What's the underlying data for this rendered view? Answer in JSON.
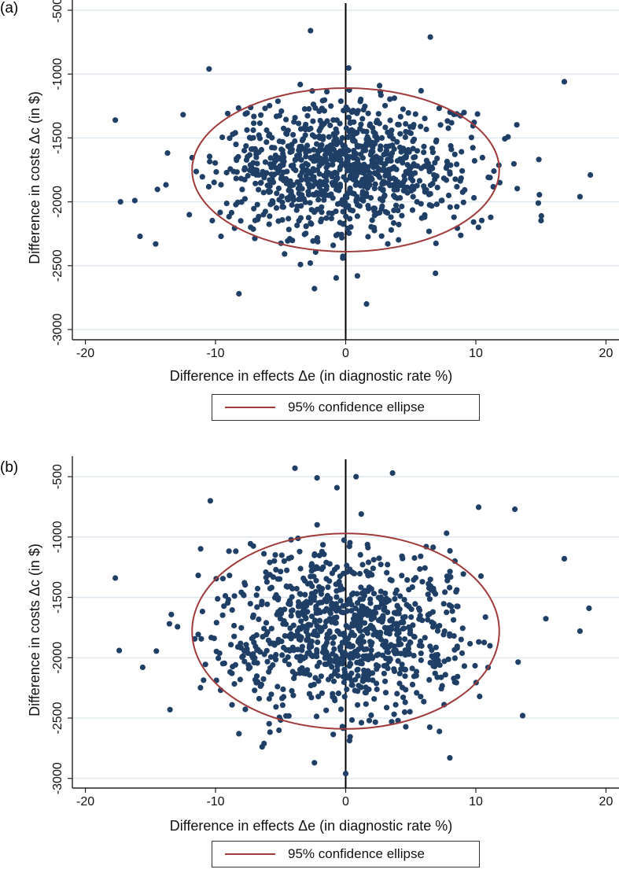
{
  "colors": {
    "point": "#1f3f66",
    "ellipse": "#a03a3a",
    "grid": "#dce6ee",
    "axis": "#000000",
    "background": "#ffffff"
  },
  "chart_data": [
    {
      "type": "scatter",
      "panel_label": "(a)",
      "title": "",
      "xlabel": "Difference in effects Δe (in diagnostic rate %)",
      "ylabel": "Difference in costs Δc (in $)",
      "xlim": [
        -21,
        21
      ],
      "ylim": [
        -3080,
        -420
      ],
      "xticks": [
        -20,
        -10,
        0,
        10,
        20
      ],
      "yticks": [
        -500,
        -1000,
        -1500,
        -2000,
        -2500,
        -3000
      ],
      "grid": "horizontal",
      "legend": {
        "position": "bottom-center",
        "label": "95% confidence ellipse"
      },
      "ellipse": {
        "center": [
          0,
          -1750
        ],
        "half_width_x": 11.8,
        "half_height_y": 640
      },
      "n_points": 1000,
      "highlighted_points": [
        {
          "x": -17.7,
          "y": -1360
        },
        {
          "x": -17.3,
          "y": -2000
        },
        {
          "x": -16.2,
          "y": -1990
        },
        {
          "x": -15.8,
          "y": -2270
        },
        {
          "x": -14.6,
          "y": -2330
        },
        {
          "x": -10.5,
          "y": -960
        },
        {
          "x": -8.2,
          "y": -2720
        },
        {
          "x": -2.7,
          "y": -660
        },
        {
          "x": -2.4,
          "y": -2680
        },
        {
          "x": 1.6,
          "y": -2800
        },
        {
          "x": 0.9,
          "y": -2580
        },
        {
          "x": 6.5,
          "y": -710
        },
        {
          "x": 16.8,
          "y": -1060
        },
        {
          "x": 18.0,
          "y": -1960
        },
        {
          "x": 18.8,
          "y": -1790
        },
        {
          "x": 14.8,
          "y": -2010
        },
        {
          "x": 10.2,
          "y": -2200
        },
        {
          "x": 6.9,
          "y": -2560
        }
      ]
    },
    {
      "type": "scatter",
      "panel_label": "(b)",
      "title": "",
      "xlabel": "Difference in effects Δe (in diagnostic rate %)",
      "ylabel": "Difference in costs Δc (in $)",
      "xlim": [
        -21,
        21
      ],
      "ylim": [
        -3080,
        -330
      ],
      "xticks": [
        -20,
        -10,
        0,
        10,
        20
      ],
      "yticks": [
        -500,
        -1000,
        -1500,
        -2000,
        -2500,
        -3000
      ],
      "grid": "horizontal",
      "legend": {
        "position": "bottom-center",
        "label": "95% confidence ellipse"
      },
      "ellipse": {
        "center": [
          0,
          -1780
        ],
        "half_width_x": 11.8,
        "half_height_y": 810
      },
      "n_points": 1000,
      "highlighted_points": [
        {
          "x": -17.7,
          "y": -1340
        },
        {
          "x": -17.4,
          "y": -1940
        },
        {
          "x": -15.6,
          "y": -2080
        },
        {
          "x": -10.4,
          "y": -700
        },
        {
          "x": -3.9,
          "y": -430
        },
        {
          "x": -2.2,
          "y": -510
        },
        {
          "x": 0.8,
          "y": -500
        },
        {
          "x": 3.6,
          "y": -470
        },
        {
          "x": 0.0,
          "y": -2960
        },
        {
          "x": -2.4,
          "y": -2870
        },
        {
          "x": 8.0,
          "y": -2830
        },
        {
          "x": 13.0,
          "y": -770
        },
        {
          "x": 16.8,
          "y": -1180
        },
        {
          "x": 18.7,
          "y": -1590
        },
        {
          "x": 18.0,
          "y": -1780
        },
        {
          "x": 13.6,
          "y": -2480
        },
        {
          "x": -13.5,
          "y": -2430
        },
        {
          "x": -8.2,
          "y": -2630
        }
      ]
    }
  ]
}
